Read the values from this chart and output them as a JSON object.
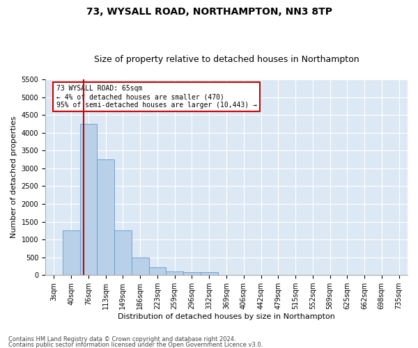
{
  "title": "73, WYSALL ROAD, NORTHAMPTON, NN3 8TP",
  "subtitle": "Size of property relative to detached houses in Northampton",
  "xlabel": "Distribution of detached houses by size in Northampton",
  "ylabel": "Number of detached properties",
  "categories": [
    "3sqm",
    "40sqm",
    "76sqm",
    "113sqm",
    "149sqm",
    "186sqm",
    "223sqm",
    "259sqm",
    "296sqm",
    "332sqm",
    "369sqm",
    "406sqm",
    "442sqm",
    "479sqm",
    "515sqm",
    "552sqm",
    "589sqm",
    "625sqm",
    "662sqm",
    "698sqm",
    "735sqm"
  ],
  "values": [
    0,
    1250,
    4250,
    3250,
    1250,
    500,
    225,
    100,
    75,
    75,
    0,
    0,
    0,
    0,
    0,
    0,
    0,
    0,
    0,
    0,
    0
  ],
  "bar_color": "#b8d0e8",
  "bar_edge_color": "#6699cc",
  "vline_x_index": 1.72,
  "vline_color": "#cc0000",
  "annotation_text": "73 WYSALL ROAD: 65sqm\n← 4% of detached houses are smaller (470)\n95% of semi-detached houses are larger (10,443) →",
  "annotation_box_color": "#ffffff",
  "annotation_box_edge": "#cc0000",
  "ylim": [
    0,
    5500
  ],
  "yticks": [
    0,
    500,
    1000,
    1500,
    2000,
    2500,
    3000,
    3500,
    4000,
    4500,
    5000,
    5500
  ],
  "footnote1": "Contains HM Land Registry data © Crown copyright and database right 2024.",
  "footnote2": "Contains public sector information licensed under the Open Government Licence v3.0.",
  "background_color": "#ffffff",
  "plot_bg_color": "#dce9f5",
  "grid_color": "#ffffff",
  "title_fontsize": 10,
  "subtitle_fontsize": 9,
  "tick_fontsize": 7,
  "label_fontsize": 8,
  "annot_fontsize": 7
}
